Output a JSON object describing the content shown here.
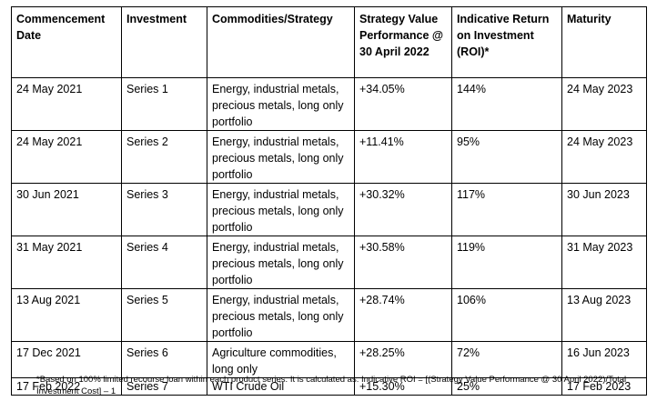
{
  "table": {
    "headers": [
      "Commencement Date",
      "Investment",
      "Commodities/Strategy",
      "Strategy Value Performance @ 30 April 2022",
      "Indicative Return on Investment (ROI)*",
      "Maturity"
    ],
    "rows": [
      [
        "24 May 2021",
        "Series 1",
        "Energy, industrial metals, precious metals, long only portfolio",
        "+34.05%",
        "144%",
        "24 May 2023"
      ],
      [
        "24 May 2021",
        "Series 2",
        "Energy, industrial metals, precious metals, long only portfolio",
        "+11.41%",
        "95%",
        "24 May 2023"
      ],
      [
        "30 Jun 2021",
        "Series 3",
        "Energy, industrial metals, precious metals, long only portfolio",
        "+30.32%",
        "117%",
        "30 Jun 2023"
      ],
      [
        "31 May 2021",
        "Series 4",
        "Energy, industrial metals, precious metals, long only portfolio",
        "+30.58%",
        "119%",
        "31 May 2023"
      ],
      [
        "13 Aug 2021",
        "Series 5",
        "Energy, industrial metals, precious metals, long only portfolio",
        "+28.74%",
        "106%",
        "13 Aug 2023"
      ],
      [
        "17 Dec 2021",
        "Series 6",
        "Agriculture commodities, long only",
        "+28.25%",
        "72%",
        "16 Jun 2023"
      ],
      [
        "17 Feb 2022",
        "Series 7",
        "WTI Crude Oil",
        "+15.30%",
        "25%",
        "17 Feb 2023"
      ]
    ]
  },
  "footnote": "*Based on 100% limited recourse loan within each product series. It is calculated as: Indicative ROI = [(Strategy Value Performance @ 30 April 2022)/Total Investment Cost] – 1"
}
